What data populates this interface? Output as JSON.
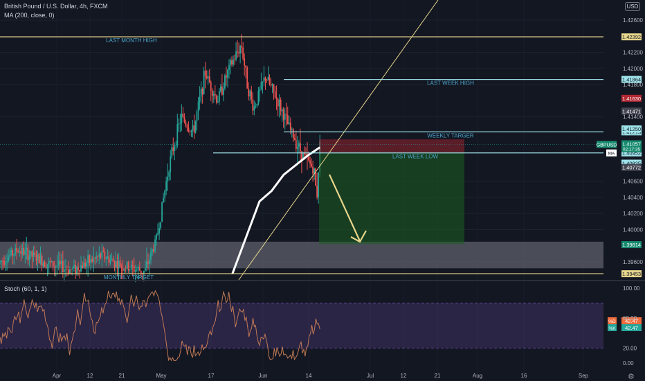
{
  "header": {
    "title": "British Pound / U.S. Dollar, 4h, FXCM",
    "indicator": "MA (200, close, 0)",
    "stoch_label": "Stoch (60, 1, 1)",
    "currency": "USD"
  },
  "chart_data": {
    "type": "candlestick",
    "symbol": "GBPUSD",
    "timeframe": "4h",
    "y_ticks": [
      "1.42600",
      "1.42200",
      "1.42000",
      "1.41800",
      "1.41400",
      "1.40600",
      "1.40400",
      "1.40200",
      "1.40000",
      "1.39600"
    ],
    "x_ticks": [
      "Apr",
      "12",
      "21",
      "May",
      "17",
      "Jun",
      "14",
      "Jul",
      "12",
      "21",
      "Aug",
      "16",
      "Sep"
    ],
    "ylim": [
      1.3945,
      1.4265
    ],
    "price_path": [
      [
        0,
        1.396
      ],
      [
        0.03,
        1.3975
      ],
      [
        0.08,
        1.3958
      ],
      [
        0.12,
        1.395
      ],
      [
        0.17,
        1.3968
      ],
      [
        0.2,
        1.3955
      ],
      [
        0.24,
        1.3948
      ],
      [
        0.26,
        1.399
      ],
      [
        0.28,
        1.408
      ],
      [
        0.3,
        1.414
      ],
      [
        0.32,
        1.412
      ],
      [
        0.34,
        1.4195
      ],
      [
        0.36,
        1.416
      ],
      [
        0.38,
        1.42
      ],
      [
        0.4,
        1.423
      ],
      [
        0.41,
        1.418
      ],
      [
        0.42,
        1.415
      ],
      [
        0.44,
        1.419
      ],
      [
        0.46,
        1.416
      ],
      [
        0.48,
        1.4125
      ],
      [
        0.5,
        1.4095
      ],
      [
        0.52,
        1.4075
      ],
      [
        0.525,
        1.404
      ],
      [
        0.53,
        1.4105
      ]
    ],
    "ma_path": [
      [
        0.385,
        1.3945
      ],
      [
        0.41,
        1.3995
      ],
      [
        0.43,
        1.4035
      ],
      [
        0.45,
        1.4048
      ],
      [
        0.47,
        1.4068
      ],
      [
        0.49,
        1.408
      ],
      [
        0.51,
        1.4092
      ],
      [
        0.53,
        1.4102
      ]
    ],
    "levels": [
      {
        "label": "LAST MONTH HIGH",
        "value": 1.42392,
        "color": "#e7d58c",
        "tag": "1.42392"
      },
      {
        "label": "LAST WEEK HIGH",
        "value": 1.41864,
        "color": "#9fe3ea",
        "tag": "1.41864"
      },
      {
        "label": "WEEKLY TARGER",
        "value": 1.41213,
        "color": "#9fe3ea",
        "tag": "1.41213"
      },
      {
        "label": "LAST WEEK LOW",
        "value": 1.40952,
        "color": "#9fe3ea",
        "tag": "1.40952"
      },
      {
        "label": "MONTHLY TARGET",
        "value": 1.39453,
        "color": "#e7d58c",
        "tag": "1.39453"
      }
    ],
    "price_tags": [
      {
        "text": "1.41630",
        "value": 1.4163,
        "bg": "#b22833",
        "fg": "#ffffff"
      },
      {
        "text": "1.41471",
        "value": 1.41471,
        "bg": "#434651",
        "fg": "#ffffff"
      },
      {
        "text": "1.41250",
        "value": 1.4125,
        "bg": "#9fe3ea",
        "fg": "#131722"
      },
      {
        "text": "1.41026",
        "value": 1.41026,
        "bg": "#b22833",
        "fg": "#ffffff"
      },
      {
        "text": "1.40825",
        "value": 1.40825,
        "bg": "#9fe3ea",
        "fg": "#131722"
      },
      {
        "text": "1.40772",
        "value": 1.40772,
        "bg": "#434651",
        "fg": "#ffffff"
      },
      {
        "text": "1.39814",
        "value": 1.39814,
        "bg": "#168a6e",
        "fg": "#ffffff"
      }
    ],
    "current": {
      "symbol": "GBPUSD",
      "price": "1.41057",
      "value": 1.41057,
      "countdown": "02:17:35"
    },
    "ma_tag": "MA",
    "position": {
      "entry": 1.4095,
      "stop": 1.4112,
      "target": 1.3982
    },
    "zone": {
      "top": 1.3985,
      "bottom": 1.3952
    },
    "stoch": {
      "label": "Stoch (60, 1, 1)",
      "ticks": [
        "100.00",
        "60.00",
        "20.00",
        "0.00"
      ],
      "band": [
        20,
        80
      ],
      "d_tag": "42.47",
      "k_tag": "42.47",
      "d_label": "%D",
      "k_label": "%K"
    }
  }
}
